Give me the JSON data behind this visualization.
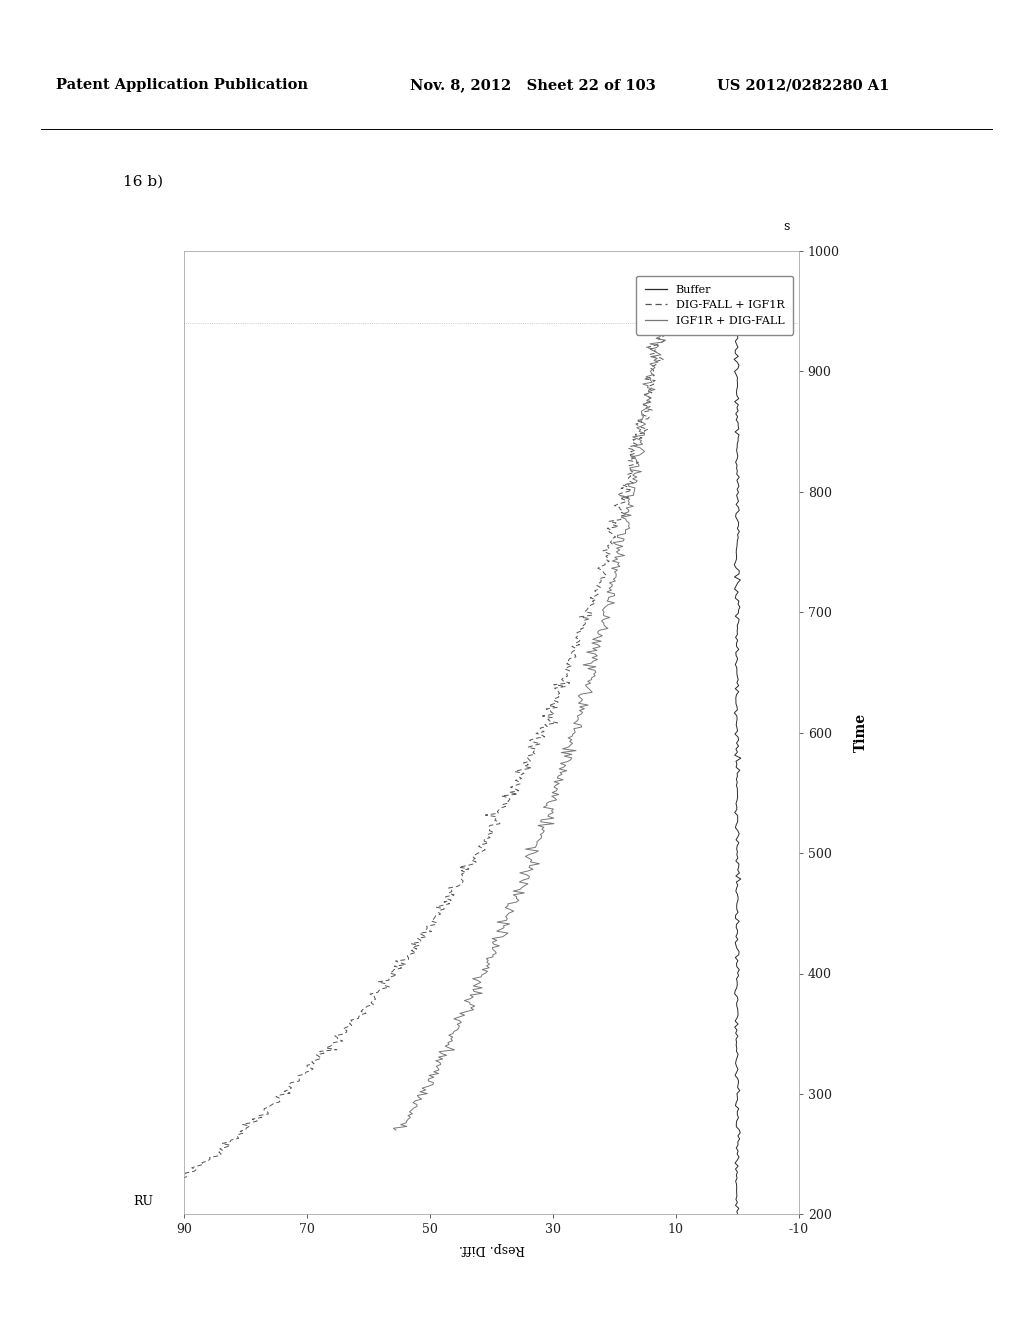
{
  "header_left": "Patent Application Publication",
  "header_mid": "Nov. 8, 2012   Sheet 22 of 103",
  "header_right": "US 2012/0282280 A1",
  "panel_label": "16 b)",
  "xlabel": "Time",
  "xlabel_unit": "s",
  "ylabel": "Resp. Diff.",
  "ylabel_unit": "RU",
  "time_lim": [
    200,
    1000
  ],
  "ru_lim": [
    -10,
    90
  ],
  "time_ticks": [
    200,
    300,
    400,
    500,
    600,
    700,
    800,
    900,
    1000
  ],
  "ru_ticks": [
    -10,
    10,
    30,
    50,
    70,
    90
  ],
  "legend_entries": [
    "Buffer",
    "DIG-FALL + IGF1R",
    "IGF1R + DIG-FALL"
  ],
  "bg_color": "#ffffff",
  "line_color_buf": "#2a2a2a",
  "line_color_c1": "#555555",
  "line_color_c2": "#777777"
}
